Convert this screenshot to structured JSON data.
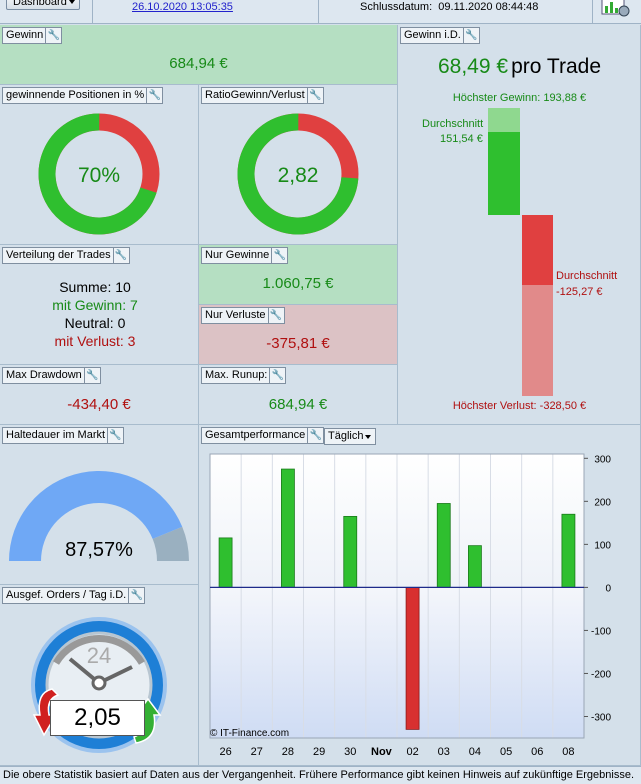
{
  "header": {
    "dashboard_label": "Dashboard",
    "start_date": "26.10.2020 13:05:35",
    "close_date_label": "Schlussdatum:",
    "close_date": "09.11.2020 08:44:48"
  },
  "panels": {
    "gewinn": {
      "title": "Gewinn",
      "value": "684,94 €"
    },
    "gewinnende": {
      "title": "gewinnende Positionen in %",
      "value": "70%",
      "fraction": 0.7
    },
    "ratio": {
      "title": "RatioGewinn/Verlust",
      "value": "2,82",
      "fraction": 0.738
    },
    "verteilung": {
      "title": "Verteilung der Trades",
      "summe_label": "Summe:",
      "summe": "10",
      "gewinn_label": "mit Gewinn:",
      "gewinn": "7",
      "neutral_label": "Neutral:",
      "neutral": "0",
      "verlust_label": "mit Verlust:",
      "verlust": "3"
    },
    "nur_gewinne": {
      "title": "Nur Gewinne",
      "value": "1.060,75 €"
    },
    "nur_verluste": {
      "title": "Nur Verluste",
      "value": "-375,81 €"
    },
    "max_drawdown": {
      "title": "Max Drawdown",
      "value": "-434,40 €"
    },
    "max_runup": {
      "title": "Max. Runup:",
      "value": "684,94 €"
    },
    "gewinn_id": {
      "title": "Gewinn i.D.",
      "value": "68,49 €",
      "suffix": "pro Trade",
      "highest_gain_label": "Höchster Gewinn: 193,88 €",
      "avg_gain_label": "Durchschnitt",
      "avg_gain": "151,54 €",
      "avg_loss_label": "Durchschnitt",
      "avg_loss": "-125,27 €",
      "highest_loss_label": "Höchster Verlust: -328,50 €"
    },
    "haltedauer": {
      "title": "Haltedauer im Markt",
      "value": "87,57%",
      "fraction": 0.8757
    },
    "orders": {
      "title": "Ausgef. Orders / Tag i.D.",
      "clock_label": "24",
      "value": "2,05"
    },
    "performance": {
      "title": "Gesamtperformance",
      "period": "Täglich",
      "watermark": "© IT-Finance.com"
    }
  },
  "colors": {
    "green": "#2fbf2f",
    "red": "#e04040",
    "axis": "#1e2a8a",
    "gauge": "#6fa8f5"
  },
  "chart_data": {
    "type": "bar",
    "categories": [
      "26",
      "27",
      "28",
      "29",
      "30",
      "Nov",
      "02",
      "03",
      "04",
      "05",
      "06",
      "08"
    ],
    "values": [
      115,
      0,
      275,
      0,
      165,
      0,
      -330,
      195,
      97,
      0,
      0,
      170
    ],
    "ylim": [
      -350,
      310
    ],
    "yticks": [
      300,
      200,
      100,
      0,
      -100,
      -200,
      -300
    ],
    "grid": true
  },
  "footer": {
    "text": "Die obere Statistik basiert auf Daten aus der Vergangenheit. Frühere Performance gibt keinen Hinweis auf zukünftige Ergebnisse."
  }
}
